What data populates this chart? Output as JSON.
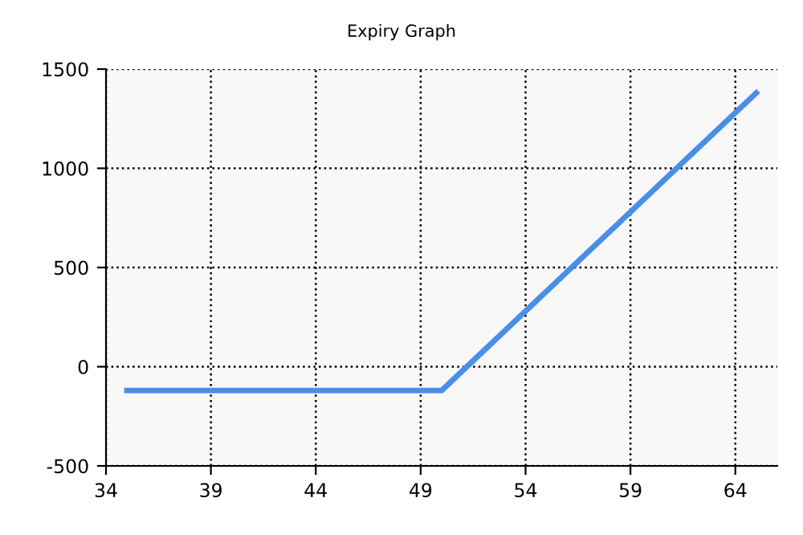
{
  "chart_data": {
    "type": "line",
    "title": "Expiry Graph",
    "x": [
      35,
      50,
      65
    ],
    "series": [
      {
        "color": "#4a8ee8",
        "values": [
          -120,
          -120,
          1380
        ]
      }
    ],
    "xlim": [
      34,
      66
    ],
    "xticks": [
      34,
      39,
      44,
      49,
      54,
      59,
      64
    ],
    "ylim": [
      -500,
      1500
    ],
    "yticks": [
      -500,
      0,
      500,
      1000,
      1500
    ],
    "grid": true,
    "marker": "none",
    "line_style": "solid"
  }
}
